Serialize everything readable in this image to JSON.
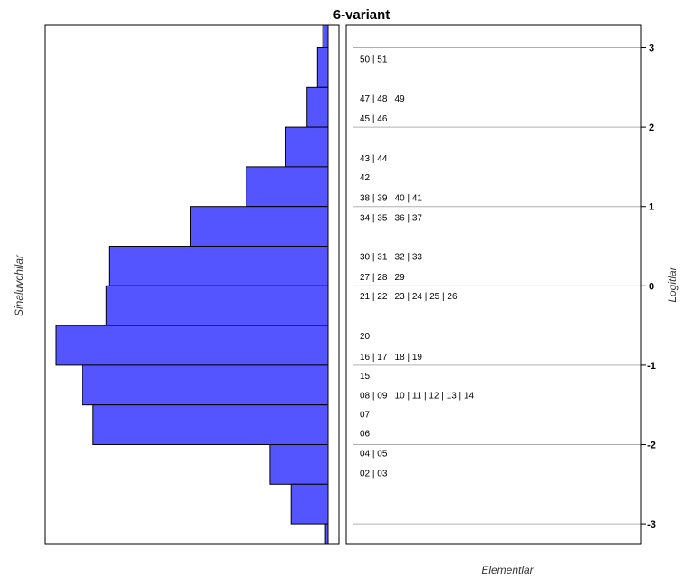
{
  "chart_data": {
    "type": "bar",
    "title": "6-variant",
    "left_axis_label": "Sinaluvchilar",
    "right_axis_label": "Logitlar",
    "bottom_label": "Elementlar",
    "ylim": [
      -3.25,
      3.28
    ],
    "y_ticks": [
      {
        "value": 3,
        "label": "3"
      },
      {
        "value": 2,
        "label": "2"
      },
      {
        "value": 1,
        "label": "1"
      },
      {
        "value": 0,
        "label": "0"
      },
      {
        "value": -1,
        "label": "-1"
      },
      {
        "value": -2,
        "label": "-2"
      },
      {
        "value": -3,
        "label": "-3"
      }
    ],
    "person_bars": [
      {
        "from": 3.0,
        "to": 3.28,
        "count": 2
      },
      {
        "from": 2.5,
        "to": 3.0,
        "count": 4
      },
      {
        "from": 2.0,
        "to": 2.5,
        "count": 8
      },
      {
        "from": 1.5,
        "to": 2.0,
        "count": 16
      },
      {
        "from": 1.0,
        "to": 1.5,
        "count": 31
      },
      {
        "from": 0.5,
        "to": 1.0,
        "count": 52
      },
      {
        "from": 0.0,
        "to": 0.5,
        "count": 83
      },
      {
        "from": -0.5,
        "to": 0.0,
        "count": 84
      },
      {
        "from": -1.0,
        "to": -0.5,
        "count": 103
      },
      {
        "from": -1.5,
        "to": -1.0,
        "count": 93
      },
      {
        "from": -2.0,
        "to": -1.5,
        "count": 89
      },
      {
        "from": -2.5,
        "to": -2.0,
        "count": 22
      },
      {
        "from": -3.0,
        "to": -2.5,
        "count": 14
      },
      {
        "from": -3.25,
        "to": -3.0,
        "count": 1
      }
    ],
    "count_max": 103,
    "items": [
      {
        "label": "50 | 51",
        "logit": 2.86
      },
      {
        "label": "47 | 48 | 49",
        "logit": 2.36
      },
      {
        "label": "45 | 46",
        "logit": 2.11
      },
      {
        "label": "43 | 44",
        "logit": 1.61
      },
      {
        "label": "42",
        "logit": 1.37
      },
      {
        "label": "38 | 39 | 40 | 41",
        "logit": 1.11
      },
      {
        "label": "34 | 35 | 36 | 37",
        "logit": 0.86
      },
      {
        "label": "30 | 31 | 32 | 33",
        "logit": 0.37
      },
      {
        "label": "27 | 28 | 29",
        "logit": 0.11
      },
      {
        "label": "21 | 22 | 23 | 24 | 25 | 26",
        "logit": -0.13
      },
      {
        "label": "20",
        "logit": -0.63
      },
      {
        "label": "16 | 17 | 18 | 19",
        "logit": -0.89
      },
      {
        "label": "15",
        "logit": -1.13
      },
      {
        "label": "08 | 09 | 10 | 11 | 12 | 13 | 14",
        "logit": -1.38
      },
      {
        "label": "07",
        "logit": -1.62
      },
      {
        "label": "06",
        "logit": -1.86
      },
      {
        "label": "04 | 05",
        "logit": -2.11
      },
      {
        "label": "02 | 03",
        "logit": -2.36
      }
    ],
    "bar_color": "#5555ff",
    "grid_line_color": "#b0b0b0"
  }
}
